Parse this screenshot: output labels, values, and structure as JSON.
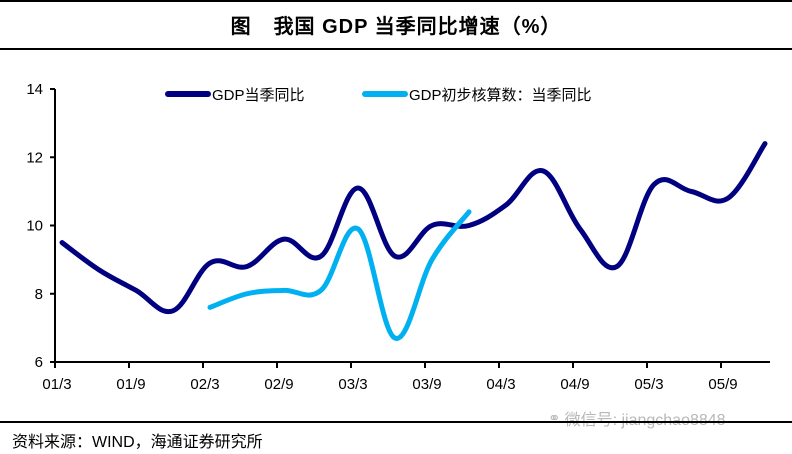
{
  "title": {
    "prefix": "图",
    "text": "我国 GDP 当季同比增速（%）"
  },
  "source_note": "资料来源：WIND，海通证券研究所",
  "watermark": {
    "icon": "wechat-icon",
    "text": "微信号: jiangchao8848"
  },
  "colors": {
    "series_dark": "#000080",
    "series_light": "#00B0F0",
    "axis": "#000000"
  },
  "chart_data": {
    "type": "line",
    "title": "我国 GDP 当季同比增速（%）",
    "xlabel": "",
    "ylabel": "",
    "ylim": [
      6,
      14
    ],
    "yticks": [
      "6",
      "8",
      "10",
      "12",
      "14"
    ],
    "xtick_labels": [
      "01/3",
      "01/9",
      "02/3",
      "02/9",
      "03/3",
      "03/9",
      "04/3",
      "04/9",
      "05/3",
      "05/9"
    ],
    "x": [
      "01/3",
      "01/6",
      "01/9",
      "01/12",
      "02/3",
      "02/6",
      "02/9",
      "02/12",
      "03/3",
      "03/6",
      "03/9",
      "03/12",
      "04/3",
      "04/6",
      "04/9",
      "04/12",
      "05/3",
      "05/6",
      "05/9",
      "05/12"
    ],
    "grid": false,
    "legend_position": "top-center",
    "series": [
      {
        "name": "GDP当季同比",
        "color": "#000080",
        "values": [
          9.5,
          8.7,
          8.1,
          7.5,
          8.9,
          8.8,
          9.6,
          9.1,
          11.1,
          9.1,
          10.0,
          10.0,
          10.6,
          11.6,
          9.9,
          8.8,
          11.2,
          11.0,
          10.8,
          12.4
        ]
      },
      {
        "name": "GDP初步核算数：当季同比",
        "color": "#00B0F0",
        "values": [
          null,
          null,
          null,
          null,
          7.6,
          8.0,
          8.1,
          8.1,
          9.9,
          6.7,
          9.0,
          10.4,
          null,
          null,
          null,
          null,
          null,
          null,
          null,
          null
        ]
      }
    ]
  }
}
